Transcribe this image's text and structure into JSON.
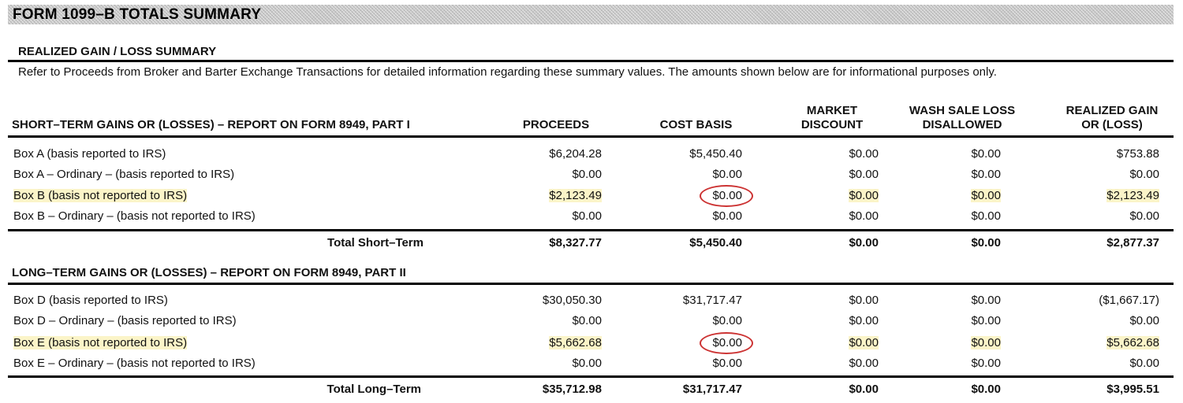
{
  "title": "FORM 1099–B TOTALS SUMMARY",
  "section_title": "REALIZED GAIN / LOSS SUMMARY",
  "note": "Refer to Proceeds from Broker and Barter Exchange Transactions for detailed information regarding these summary values.  The amounts shown below are for informational purposes only.",
  "columns": {
    "proceeds": "PROCEEDS",
    "cost_basis": "COST BASIS",
    "market_discount_1": "MARKET",
    "market_discount_2": "DISCOUNT",
    "wash_1": "WASH SALE LOSS",
    "wash_2": "DISALLOWED",
    "gain_1": "REALIZED GAIN",
    "gain_2": "OR (LOSS)"
  },
  "highlight_color": "#fbf4c8",
  "circle_color": "#cc3333",
  "short_term": {
    "heading": "SHORT–TERM GAINS OR (LOSSES) – REPORT ON FORM 8949, PART I",
    "rows": [
      {
        "label": "Box A (basis reported to IRS)",
        "proceeds": "$6,204.28",
        "cost": "$5,450.40",
        "market": "$0.00",
        "wash": "$0.00",
        "gain": "$753.88"
      },
      {
        "label": "Box A – Ordinary – (basis reported to IRS)",
        "proceeds": "$0.00",
        "cost": "$0.00",
        "market": "$0.00",
        "wash": "$0.00",
        "gain": "$0.00"
      },
      {
        "label": "Box B (basis not reported to IRS)",
        "proceeds": "$2,123.49",
        "cost": "$0.00",
        "market": "$0.00",
        "wash": "$0.00",
        "gain": "$2,123.49"
      },
      {
        "label": "Box B – Ordinary – (basis not reported to IRS)",
        "proceeds": "$0.00",
        "cost": "$0.00",
        "market": "$0.00",
        "wash": "$0.00",
        "gain": "$0.00"
      }
    ],
    "total": {
      "label": "Total Short–Term",
      "proceeds": "$8,327.77",
      "cost": "$5,450.40",
      "market": "$0.00",
      "wash": "$0.00",
      "gain": "$2,877.37"
    }
  },
  "long_term": {
    "heading": "LONG–TERM GAINS OR (LOSSES) – REPORT ON FORM 8949, PART II",
    "rows": [
      {
        "label": "Box D (basis reported to IRS)",
        "proceeds": "$30,050.30",
        "cost": "$31,717.47",
        "market": "$0.00",
        "wash": "$0.00",
        "gain": "($1,667.17)"
      },
      {
        "label": "Box D – Ordinary – (basis reported to IRS)",
        "proceeds": "$0.00",
        "cost": "$0.00",
        "market": "$0.00",
        "wash": "$0.00",
        "gain": "$0.00"
      },
      {
        "label": "Box E (basis not reported to IRS)",
        "proceeds": "$5,662.68",
        "cost": "$0.00",
        "market": "$0.00",
        "wash": "$0.00",
        "gain": "$5,662.68"
      },
      {
        "label": "Box E – Ordinary – (basis not reported to IRS)",
        "proceeds": "$0.00",
        "cost": "$0.00",
        "market": "$0.00",
        "wash": "$0.00",
        "gain": "$0.00"
      }
    ],
    "total": {
      "label": "Total Long–Term",
      "proceeds": "$35,712.98",
      "cost": "$31,717.47",
      "market": "$0.00",
      "wash": "$0.00",
      "gain": "$3,995.51"
    }
  }
}
